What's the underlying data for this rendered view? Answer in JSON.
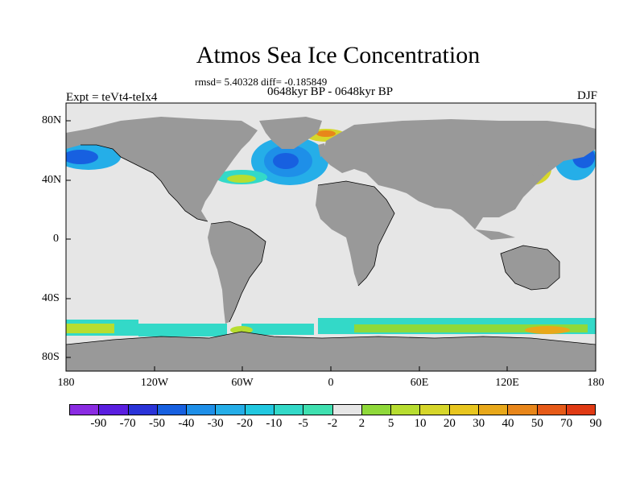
{
  "title": "Atmos Sea Ice Concentration",
  "stats": "rmsd= 5.40328 diff= -0.185849",
  "period": "0648kyr BP - 0648kyr BP",
  "expt": "Expt = teVt4-teIx4",
  "season": "DJF",
  "lat_labels": [
    "80N",
    "40N",
    "0",
    "40S",
    "80S"
  ],
  "lon_labels": [
    "180",
    "120W",
    "60W",
    "0",
    "60E",
    "120E",
    "180"
  ],
  "colors": {
    "ocean": "#e6e6e6",
    "land": "#999999",
    "coast": "#000000"
  },
  "colorbar": {
    "labels": [
      "-90",
      "-70",
      "-50",
      "-40",
      "-30",
      "-20",
      "-10",
      "-5",
      "-2",
      "2",
      "5",
      "10",
      "20",
      "30",
      "40",
      "50",
      "70",
      "90"
    ],
    "colors": [
      "#8a2be2",
      "#5a1ee0",
      "#2a33d8",
      "#1760e0",
      "#1e8fe8",
      "#25aee8",
      "#22c8e0",
      "#33d9c8",
      "#3fe0b0",
      "#e6e6e6",
      "#8fd93a",
      "#b7dd30",
      "#d6d62a",
      "#e8c61f",
      "#e8a81a",
      "#e8861a",
      "#e65a18",
      "#e03a14"
    ]
  }
}
